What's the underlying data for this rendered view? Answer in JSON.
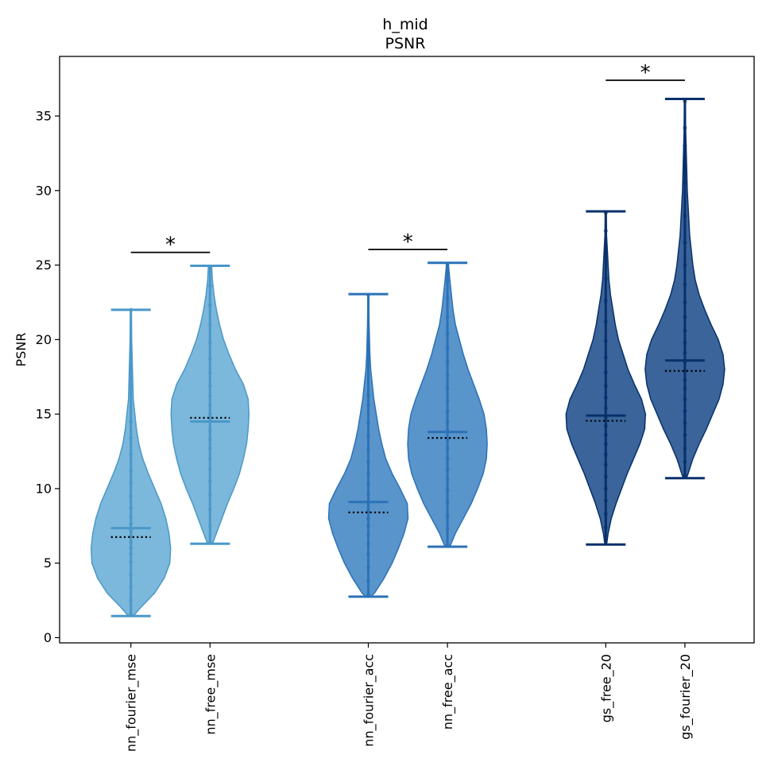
{
  "chart_data": {
    "type": "violin",
    "title": "h_mid",
    "subtitle": "PSNR",
    "xlabel": "",
    "ylabel": "PSNR",
    "ylim": [
      -0.35,
      39
    ],
    "yticks": [
      0,
      5,
      10,
      15,
      20,
      25,
      30,
      35
    ],
    "grid": false,
    "series": [
      {
        "name": "nn_fourier_mse",
        "x": 1,
        "color": "#6aaed6",
        "edge": "#4a98c9",
        "min": 1.45,
        "max": 22.0,
        "mean": 7.35,
        "median": 6.75,
        "profile": [
          [
            1.45,
            0.03
          ],
          [
            2.0,
            0.12
          ],
          [
            3.0,
            0.3
          ],
          [
            4.0,
            0.42
          ],
          [
            5.0,
            0.49
          ],
          [
            6.0,
            0.5
          ],
          [
            7.0,
            0.48
          ],
          [
            8.0,
            0.44
          ],
          [
            9.0,
            0.38
          ],
          [
            10.0,
            0.3
          ],
          [
            11.0,
            0.22
          ],
          [
            12.0,
            0.15
          ],
          [
            13.0,
            0.1
          ],
          [
            14.0,
            0.07
          ],
          [
            15.0,
            0.05
          ],
          [
            16.0,
            0.03
          ],
          [
            18.0,
            0.02
          ],
          [
            20.0,
            0.01
          ],
          [
            22.0,
            0.005
          ]
        ],
        "points": [
          1.6,
          2.5,
          3.4,
          4.2,
          5.1,
          5.6,
          6.0,
          6.4,
          6.8,
          7.2,
          7.6,
          8.1,
          8.7,
          9.5,
          10.4,
          11.2,
          12.3,
          13.4,
          14.5,
          16.9,
          22.0
        ]
      },
      {
        "name": "nn_free_mse",
        "x": 2,
        "color": "#6aaed6",
        "edge": "#4a98c9",
        "min": 6.3,
        "max": 24.95,
        "mean": 14.5,
        "median": 14.75,
        "profile": [
          [
            6.3,
            0.03
          ],
          [
            7.0,
            0.08
          ],
          [
            8.0,
            0.15
          ],
          [
            9.0,
            0.22
          ],
          [
            10.0,
            0.3
          ],
          [
            11.0,
            0.37
          ],
          [
            12.0,
            0.42
          ],
          [
            13.0,
            0.46
          ],
          [
            14.0,
            0.48
          ],
          [
            15.0,
            0.49
          ],
          [
            16.0,
            0.48
          ],
          [
            17.0,
            0.42
          ],
          [
            18.0,
            0.32
          ],
          [
            19.0,
            0.24
          ],
          [
            20.0,
            0.17
          ],
          [
            21.0,
            0.12
          ],
          [
            22.0,
            0.08
          ],
          [
            23.0,
            0.05
          ],
          [
            24.0,
            0.03
          ],
          [
            24.95,
            0.02
          ]
        ],
        "points": [
          6.4,
          7.5,
          8.6,
          9.6,
          10.5,
          11.3,
          12.0,
          12.7,
          13.3,
          13.9,
          14.5,
          15.0,
          15.6,
          16.2,
          16.9,
          17.8,
          18.7,
          19.8,
          21.0,
          22.3,
          23.6,
          24.8
        ]
      },
      {
        "name": "nn_fourier_acc",
        "x": 4,
        "color": "#4285c4",
        "edge": "#2c72b7",
        "min": 2.75,
        "max": 23.05,
        "mean": 9.1,
        "median": 8.4,
        "profile": [
          [
            2.75,
            0.03
          ],
          [
            3.0,
            0.08
          ],
          [
            4.0,
            0.2
          ],
          [
            5.0,
            0.3
          ],
          [
            6.0,
            0.38
          ],
          [
            7.0,
            0.45
          ],
          [
            8.0,
            0.5
          ],
          [
            9.0,
            0.49
          ],
          [
            10.0,
            0.4
          ],
          [
            11.0,
            0.3
          ],
          [
            12.0,
            0.22
          ],
          [
            13.0,
            0.17
          ],
          [
            14.0,
            0.13
          ],
          [
            15.0,
            0.1
          ],
          [
            16.0,
            0.07
          ],
          [
            17.0,
            0.05
          ],
          [
            18.0,
            0.03
          ],
          [
            19.0,
            0.02
          ],
          [
            21.0,
            0.01
          ],
          [
            23.05,
            0.005
          ]
        ],
        "points": [
          2.9,
          3.8,
          4.7,
          5.6,
          6.3,
          6.9,
          7.5,
          8.0,
          8.5,
          9.0,
          9.6,
          10.3,
          11.0,
          11.8,
          12.6,
          13.5,
          14.4,
          15.6,
          16.3,
          18.8,
          23.0
        ]
      },
      {
        "name": "nn_free_acc",
        "x": 5,
        "color": "#4285c4",
        "edge": "#2c72b7",
        "min": 6.1,
        "max": 25.15,
        "mean": 13.8,
        "median": 13.4,
        "profile": [
          [
            6.1,
            0.03
          ],
          [
            7.0,
            0.1
          ],
          [
            8.0,
            0.2
          ],
          [
            9.0,
            0.3
          ],
          [
            10.0,
            0.38
          ],
          [
            11.0,
            0.45
          ],
          [
            12.0,
            0.49
          ],
          [
            13.0,
            0.5
          ],
          [
            14.0,
            0.49
          ],
          [
            15.0,
            0.46
          ],
          [
            16.0,
            0.4
          ],
          [
            17.0,
            0.33
          ],
          [
            18.0,
            0.26
          ],
          [
            19.0,
            0.2
          ],
          [
            20.0,
            0.15
          ],
          [
            21.0,
            0.1
          ],
          [
            22.0,
            0.07
          ],
          [
            23.0,
            0.05
          ],
          [
            24.0,
            0.03
          ],
          [
            25.15,
            0.01
          ]
        ],
        "points": [
          6.2,
          7.3,
          8.2,
          9.1,
          9.9,
          10.6,
          11.3,
          12.0,
          12.7,
          13.3,
          13.9,
          14.5,
          15.2,
          15.9,
          16.7,
          17.6,
          18.5,
          19.4,
          20.4,
          21.5,
          22.8,
          24.0,
          25.0
        ]
      },
      {
        "name": "gs_free_20",
        "x": 7,
        "color": "#1f4e8c",
        "edge": "#08306b",
        "min": 6.25,
        "max": 28.6,
        "mean": 14.9,
        "median": 14.55,
        "profile": [
          [
            6.25,
            0.01
          ],
          [
            7.0,
            0.03
          ],
          [
            8.0,
            0.07
          ],
          [
            9.0,
            0.13
          ],
          [
            10.0,
            0.2
          ],
          [
            11.0,
            0.27
          ],
          [
            12.0,
            0.35
          ],
          [
            13.0,
            0.43
          ],
          [
            14.0,
            0.49
          ],
          [
            15.0,
            0.5
          ],
          [
            16.0,
            0.45
          ],
          [
            17.0,
            0.36
          ],
          [
            18.0,
            0.28
          ],
          [
            19.0,
            0.22
          ],
          [
            20.0,
            0.16
          ],
          [
            21.0,
            0.12
          ],
          [
            22.0,
            0.09
          ],
          [
            23.0,
            0.06
          ],
          [
            24.0,
            0.04
          ],
          [
            25.0,
            0.03
          ],
          [
            26.0,
            0.02
          ],
          [
            27.0,
            0.01
          ],
          [
            28.6,
            0.005
          ]
        ],
        "points": [
          6.5,
          7.4,
          8.3,
          9.2,
          10.0,
          10.8,
          11.6,
          12.3,
          13.0,
          13.6,
          14.2,
          14.8,
          15.4,
          16.1,
          16.9,
          17.8,
          18.8,
          19.9,
          21.2,
          22.6,
          24.1,
          25.8,
          27.3,
          28.5
        ]
      },
      {
        "name": "gs_fourier_20",
        "x": 8,
        "color": "#1f4e8c",
        "edge": "#08306b",
        "min": 10.7,
        "max": 36.15,
        "mean": 18.6,
        "median": 17.9,
        "profile": [
          [
            10.7,
            0.02
          ],
          [
            11.0,
            0.04
          ],
          [
            12.0,
            0.1
          ],
          [
            13.0,
            0.18
          ],
          [
            14.0,
            0.27
          ],
          [
            15.0,
            0.35
          ],
          [
            16.0,
            0.43
          ],
          [
            17.0,
            0.48
          ],
          [
            18.0,
            0.5
          ],
          [
            19.0,
            0.48
          ],
          [
            20.0,
            0.42
          ],
          [
            21.0,
            0.33
          ],
          [
            22.0,
            0.25
          ],
          [
            23.0,
            0.18
          ],
          [
            24.0,
            0.13
          ],
          [
            25.0,
            0.1
          ],
          [
            26.0,
            0.08
          ],
          [
            27.0,
            0.06
          ],
          [
            28.0,
            0.05
          ],
          [
            29.0,
            0.04
          ],
          [
            30.0,
            0.03
          ],
          [
            32.0,
            0.02
          ],
          [
            34.0,
            0.01
          ],
          [
            36.15,
            0.005
          ]
        ],
        "points": [
          10.9,
          11.8,
          12.7,
          13.6,
          14.4,
          15.2,
          16.0,
          16.7,
          17.3,
          17.9,
          18.5,
          19.1,
          19.8,
          20.6,
          21.5,
          22.5,
          23.7,
          25.0,
          26.5,
          28.3,
          30.5,
          33.0,
          34.2,
          36.0
        ]
      }
    ],
    "significance": [
      {
        "label": "*",
        "from": 1,
        "to": 2,
        "y": 25.85
      },
      {
        "label": "*",
        "from": 4,
        "to": 5,
        "y": 26.05
      },
      {
        "label": "*",
        "from": 7,
        "to": 8,
        "y": 37.4
      }
    ]
  }
}
